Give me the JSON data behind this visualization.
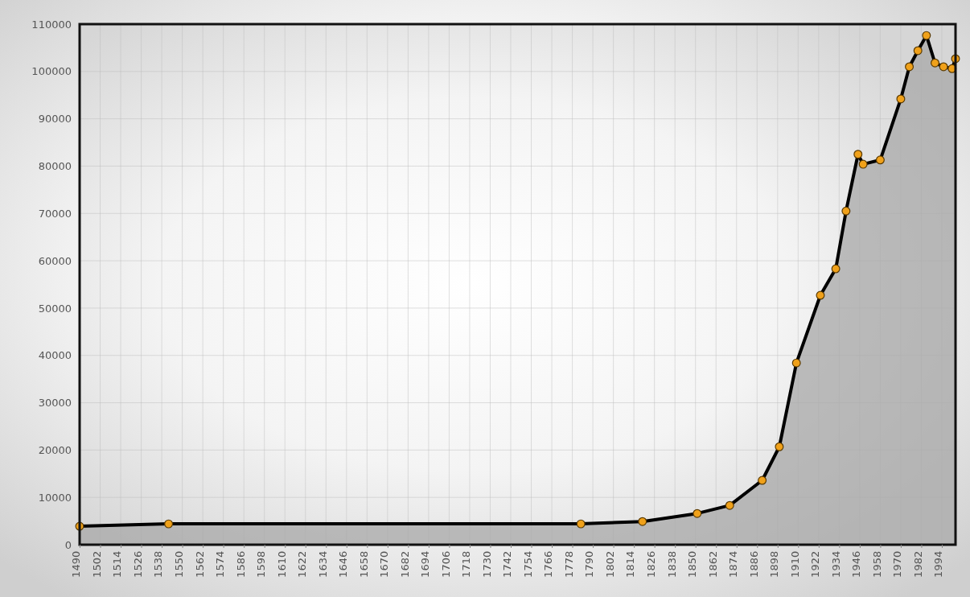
{
  "chart_data": {
    "type": "area",
    "x": [
      1490,
      1542,
      1783,
      1819,
      1851,
      1870,
      1889,
      1899,
      1909,
      1923,
      1932,
      1938,
      1945,
      1948,
      1958,
      1970,
      1975,
      1980,
      1985,
      1990,
      1995,
      2000,
      2002
    ],
    "series": [
      {
        "color": "#000000",
        "values": [
          3900,
          4400,
          4400,
          4900,
          6600,
          8300,
          13600,
          20700,
          38400,
          52700,
          58300,
          70500,
          82500,
          80400,
          81300,
          94200,
          101000,
          104400,
          107600,
          101800,
          101000,
          100600,
          102700
        ]
      }
    ],
    "xlim": [
      1490,
      2002
    ],
    "xticks": [
      1490,
      1502,
      1514,
      1526,
      1538,
      1550,
      1562,
      1574,
      1586,
      1598,
      1610,
      1622,
      1634,
      1646,
      1658,
      1670,
      1682,
      1694,
      1706,
      1718,
      1730,
      1742,
      1754,
      1766,
      1778,
      1790,
      1802,
      1814,
      1826,
      1838,
      1850,
      1862,
      1874,
      1886,
      1898,
      1910,
      1922,
      1934,
      1946,
      1958,
      1970,
      1982,
      1994
    ],
    "ylim": [
      0,
      110000
    ],
    "yticks": [
      0,
      10000,
      20000,
      30000,
      40000,
      50000,
      60000,
      70000,
      80000,
      90000,
      100000,
      110000
    ],
    "grid": true,
    "marker": "circle",
    "line_style": "solid"
  }
}
